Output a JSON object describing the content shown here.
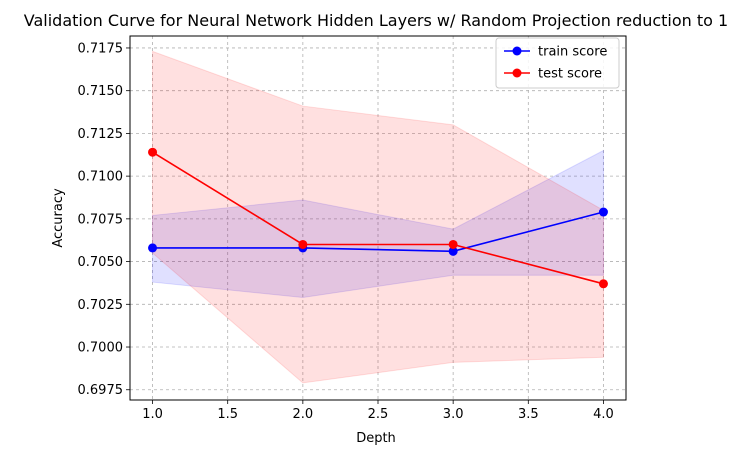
{
  "chart_data": {
    "type": "line",
    "title": "Validation Curve for Neural Network Hidden Layers w/ Random Projection reduction to 1",
    "xlabel": "Depth",
    "ylabel": "Accuracy",
    "x": [
      1.0,
      2.0,
      3.0,
      4.0
    ],
    "xlim": [
      0.85,
      4.15
    ],
    "ylim": [
      0.6969,
      0.7182
    ],
    "xticks": [
      1.0,
      1.5,
      2.0,
      2.5,
      3.0,
      3.5,
      4.0
    ],
    "xtick_labels": [
      "1.0",
      "1.5",
      "2.0",
      "2.5",
      "3.0",
      "3.5",
      "4.0"
    ],
    "yticks": [
      0.6975,
      0.7,
      0.7025,
      0.705,
      0.7075,
      0.71,
      0.7125,
      0.715,
      0.7175
    ],
    "ytick_labels": [
      "0.6975",
      "0.7000",
      "0.7025",
      "0.7050",
      "0.7075",
      "0.7100",
      "0.7125",
      "0.7150",
      "0.7175"
    ],
    "grid": true,
    "legend_position": "top-right",
    "series": [
      {
        "name": "train score",
        "color": "#0000ff",
        "values": [
          0.7058,
          0.7058,
          0.7056,
          0.7079
        ],
        "band_upper": [
          0.7077,
          0.7086,
          0.7069,
          0.7115
        ],
        "band_lower": [
          0.7038,
          0.7029,
          0.7042,
          0.7042
        ]
      },
      {
        "name": "test score",
        "color": "#ff0000",
        "values": [
          0.7114,
          0.706,
          0.706,
          0.7037
        ],
        "band_upper": [
          0.7173,
          0.7141,
          0.713,
          0.708
        ],
        "band_lower": [
          0.7055,
          0.6979,
          0.6991,
          0.6994
        ]
      }
    ]
  }
}
